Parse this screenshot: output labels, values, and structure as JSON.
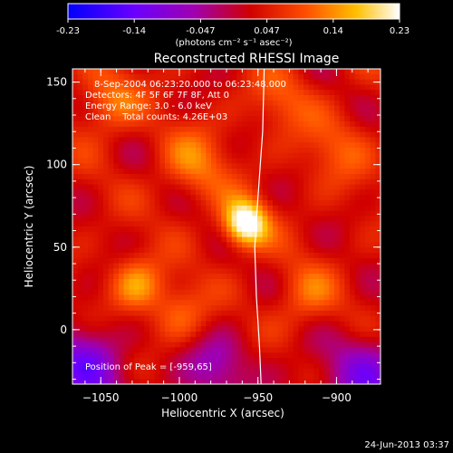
{
  "colorbar": {
    "tick_labels": [
      "-0.23",
      "-0.14",
      "-0.047",
      "0.047",
      "0.14",
      "0.23"
    ],
    "units_text": "(photons cm⁻² s⁻¹ asec⁻²)"
  },
  "plot": {
    "title": "Reconstructed RHESSI Image",
    "annotations": [
      "8-Sep-2004 06:23:20.000 to 06:23:48.000",
      "Detectors: 4F 5F 6F 7F 8F, Att 0",
      "Energy Range: 3.0 - 6.0 keV",
      "Clean    Total counts: 4.26E+03"
    ],
    "peak_label": "Position of Peak = [-959,65]",
    "footer_date": "24-Jun-2013 03:37"
  },
  "chart_data": {
    "type": "heatmap",
    "title": "Reconstructed RHESSI Image",
    "xlabel": "Heliocentric X (arcsec)",
    "ylabel": "Heliocentric Y (arcsec)",
    "xlim": [
      -1068,
      -872
    ],
    "ylim": [
      -33,
      158
    ],
    "x_ticks": [
      -1050,
      -1000,
      -950,
      -900
    ],
    "y_ticks": [
      0,
      50,
      100,
      150
    ],
    "x_tick_labels": [
      "−1050",
      "−1000",
      "−950",
      "−900"
    ],
    "y_tick_labels": [
      "0",
      "50",
      "100",
      "150"
    ],
    "colorbar_range": [
      -0.23,
      0.23
    ],
    "peak": [
      -959,
      65
    ],
    "colormap": [
      "#0000ff",
      "#6a00ff",
      "#a000b0",
      "#d00000",
      "#ff5000",
      "#ffc000",
      "#ffffff"
    ],
    "sources": [
      {
        "x": -958,
        "y": 64,
        "amp": 0.23,
        "sigma": 10
      },
      {
        "x": -1027,
        "y": 27,
        "amp": 0.11,
        "sigma": 12
      },
      {
        "x": -1045,
        "y": 138,
        "amp": 0.09,
        "sigma": 14
      },
      {
        "x": -990,
        "y": 100,
        "amp": 0.08,
        "sigma": 16
      },
      {
        "x": -1000,
        "y": 10,
        "amp": 0.07,
        "sigma": 13
      },
      {
        "x": -920,
        "y": 20,
        "amp": 0.07,
        "sigma": 14
      },
      {
        "x": -900,
        "y": 110,
        "amp": 0.06,
        "sigma": 16
      },
      {
        "x": -935,
        "y": 140,
        "amp": 0.06,
        "sigma": 14
      },
      {
        "x": -975,
        "y": -20,
        "amp": -0.08,
        "sigma": 14
      },
      {
        "x": -1060,
        "y": -20,
        "amp": -0.12,
        "sigma": 18
      },
      {
        "x": -880,
        "y": -25,
        "amp": -0.1,
        "sigma": 18
      }
    ],
    "limb_curve": [
      [
        -946,
        158
      ],
      [
        -947,
        120
      ],
      [
        -950,
        80
      ],
      [
        -952,
        50
      ],
      [
        -951,
        20
      ],
      [
        -949,
        -10
      ],
      [
        -948,
        -33
      ]
    ]
  }
}
